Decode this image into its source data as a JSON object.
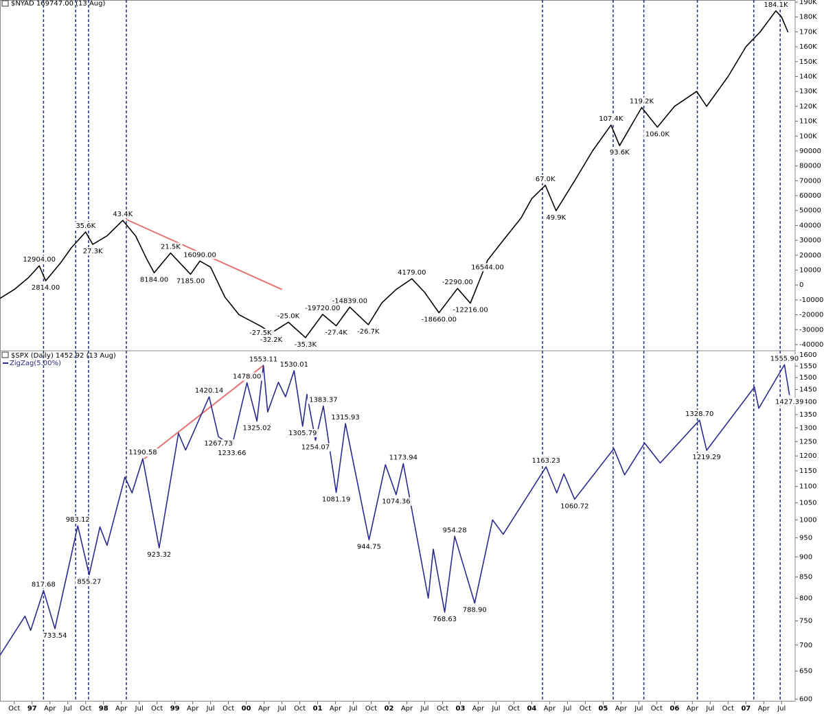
{
  "chart_data": [
    {
      "type": "line",
      "title": "$NYAD 169747.00 (13 Aug)",
      "xlim": [
        1996.55,
        2007.69
      ],
      "ylim": [
        -43700,
        191400
      ],
      "log": false,
      "yticks": [
        {
          "value": 190000,
          "label": "190K"
        },
        {
          "value": 180000,
          "label": "180K"
        },
        {
          "value": 170000,
          "label": "170K"
        },
        {
          "value": 160000,
          "label": "160K"
        },
        {
          "value": 150000,
          "label": "150K"
        },
        {
          "value": 140000,
          "label": "140K"
        },
        {
          "value": 130000,
          "label": "130K"
        },
        {
          "value": 120000,
          "label": "120K"
        },
        {
          "value": 110000,
          "label": "110K"
        },
        {
          "value": 100000,
          "label": "100K"
        },
        90000,
        80000,
        70000,
        60000,
        50000,
        40000,
        30000,
        20000,
        10000,
        0,
        -10000,
        -20000,
        -30000,
        -40000
      ],
      "series": [
        {
          "color": "#000000",
          "x": [
            1996.55,
            1996.75,
            1996.95,
            1997.1,
            1997.19,
            1997.4,
            1997.55,
            1997.75,
            1997.85,
            1998.05,
            1998.27,
            1998.45,
            1998.6,
            1998.71,
            1998.94,
            1999.22,
            1999.35,
            1999.5,
            1999.7,
            1999.9,
            2000.2,
            2000.35,
            2000.59,
            2000.83,
            2001.07,
            2001.26,
            2001.45,
            2001.71,
            2001.9,
            2002.1,
            2002.32,
            2002.5,
            2002.7,
            2002.96,
            2003.14,
            2003.38,
            2003.6,
            2003.85,
            2004.0,
            2004.19,
            2004.34,
            2004.6,
            2004.85,
            2005.11,
            2005.23,
            2005.54,
            2005.76,
            2006.0,
            2006.31,
            2006.45,
            2006.75,
            2007.0,
            2007.2,
            2007.42,
            2007.5,
            2007.59
          ],
          "values": [
            -9000,
            -3000,
            5000,
            12904,
            2814,
            15000,
            25000,
            35600,
            27300,
            33000,
            43400,
            33000,
            18000,
            8184,
            21500,
            7185,
            16090,
            12000,
            -8000,
            -20000,
            -27500,
            -32200,
            -25000,
            -35300,
            -19720,
            -27400,
            -14839,
            -26700,
            -12000,
            -3000,
            4179,
            -5000,
            -18660,
            -2290,
            -12216,
            16544,
            30000,
            45000,
            58000,
            67000,
            49900,
            70000,
            90000,
            107400,
            93600,
            119200,
            106000,
            120000,
            130000,
            120000,
            140000,
            160000,
            170000,
            184100,
            180000,
            169747
          ],
          "value_labels": [
            null,
            null,
            null,
            "12904.00",
            "2814.00",
            null,
            null,
            "35.6K",
            "27.3K",
            null,
            "43.4K",
            null,
            null,
            "8184.00",
            "21.5K",
            "7185.00",
            "16090.00",
            null,
            null,
            null,
            "-27.5K",
            "-32.2K",
            "-25.0K",
            "-35.3K",
            "-19720.00",
            "-27.4K",
            "-14839.00",
            "-26.7K",
            null,
            null,
            "4179.00",
            null,
            "-18660.00",
            "-2290.00",
            "-12216.00",
            "16544.00",
            null,
            null,
            null,
            "67.0K",
            "49.9K",
            null,
            null,
            "107.4K",
            "93.6K",
            "119.2K",
            "106.0K",
            null,
            null,
            null,
            null,
            null,
            null,
            "184.1K",
            null,
            null
          ]
        }
      ],
      "trendlines": [
        {
          "color": "#e57373",
          "x": [
            1998.32,
            2000.5
          ],
          "values": [
            44000,
            -3000
          ]
        }
      ]
    },
    {
      "type": "line",
      "title": "$SPX (Daily) 1452.92 (13 Aug)",
      "xlim": [
        1996.55,
        2007.69
      ],
      "ylim": [
        596,
        1616
      ],
      "log": true,
      "yticks": [
        1600,
        1550,
        1500,
        1450,
        1400,
        1350,
        1300,
        1250,
        1200,
        1150,
        1100,
        1050,
        1000,
        950,
        900,
        850,
        800,
        750,
        700,
        650,
        600
      ],
      "xticks": [
        {
          "value": 1996.75,
          "label": "Oct"
        },
        {
          "value": 1997.0,
          "label": "97"
        },
        {
          "value": 1997.25,
          "label": "Apr"
        },
        {
          "value": 1997.5,
          "label": "Jul"
        },
        {
          "value": 1997.75,
          "label": "Oct"
        },
        {
          "value": 1998.0,
          "label": "98"
        },
        {
          "value": 1998.25,
          "label": "Apr"
        },
        {
          "value": 1998.5,
          "label": "Jul"
        },
        {
          "value": 1998.75,
          "label": "Oct"
        },
        {
          "value": 1999.0,
          "label": "99"
        },
        {
          "value": 1999.25,
          "label": "Apr"
        },
        {
          "value": 1999.5,
          "label": "Jul"
        },
        {
          "value": 1999.75,
          "label": "Oct"
        },
        {
          "value": 2000.0,
          "label": "00"
        },
        {
          "value": 2000.25,
          "label": "Apr"
        },
        {
          "value": 2000.5,
          "label": "Jul"
        },
        {
          "value": 2000.75,
          "label": "Oct"
        },
        {
          "value": 2001.0,
          "label": "01"
        },
        {
          "value": 2001.25,
          "label": "Apr"
        },
        {
          "value": 2001.5,
          "label": "Jul"
        },
        {
          "value": 2001.75,
          "label": "Oct"
        },
        {
          "value": 2002.0,
          "label": "02"
        },
        {
          "value": 2002.25,
          "label": "Apr"
        },
        {
          "value": 2002.5,
          "label": "Jul"
        },
        {
          "value": 2002.75,
          "label": "Oct"
        },
        {
          "value": 2003.0,
          "label": "03"
        },
        {
          "value": 2003.25,
          "label": "Apr"
        },
        {
          "value": 2003.5,
          "label": "Jul"
        },
        {
          "value": 2003.75,
          "label": "Oct"
        },
        {
          "value": 2004.0,
          "label": "04"
        },
        {
          "value": 2004.25,
          "label": "Apr"
        },
        {
          "value": 2004.5,
          "label": "Jul"
        },
        {
          "value": 2004.75,
          "label": "Oct"
        },
        {
          "value": 2005.0,
          "label": "05"
        },
        {
          "value": 2005.25,
          "label": "Apr"
        },
        {
          "value": 2005.5,
          "label": "Jul"
        },
        {
          "value": 2005.75,
          "label": "Oct"
        },
        {
          "value": 2006.0,
          "label": "06"
        },
        {
          "value": 2006.25,
          "label": "Apr"
        },
        {
          "value": 2006.5,
          "label": "Jul"
        },
        {
          "value": 2006.75,
          "label": "Oct"
        },
        {
          "value": 2007.0,
          "label": "07"
        },
        {
          "value": 2007.25,
          "label": "Apr"
        },
        {
          "value": 2007.5,
          "label": "Jul"
        }
      ],
      "vlines": {
        "color": "#1a2a80",
        "x": [
          1997.16,
          1997.61,
          1997.79,
          1998.32,
          2004.15,
          2005.14,
          2005.57,
          2006.32,
          2007.11,
          2007.48
        ]
      },
      "series": [
        {
          "name": "ZigZag(5.00%)",
          "color": "#2a2a8c",
          "x": [
            1996.55,
            1996.9,
            1996.98,
            1997.16,
            1997.32,
            1997.64,
            1997.8,
            1997.95,
            1998.05,
            1998.3,
            1998.4,
            1998.55,
            1998.78,
            1999.05,
            1999.15,
            1999.48,
            1999.61,
            1999.8,
            2000.01,
            2000.15,
            2000.24,
            2000.3,
            2000.45,
            2000.55,
            2000.67,
            2000.79,
            2000.85,
            2000.97,
            2001.08,
            2001.26,
            2001.39,
            2001.72,
            2001.95,
            2002.1,
            2002.2,
            2002.55,
            2002.62,
            2002.78,
            2002.92,
            2003.2,
            2003.45,
            2003.6,
            2004.2,
            2004.35,
            2004.45,
            2004.6,
            2005.15,
            2005.3,
            2005.58,
            2005.8,
            2006.35,
            2006.45,
            2007.12,
            2007.18,
            2007.54,
            2007.61
          ],
          "values": [
            680,
            760,
            730,
            817.68,
            733.54,
            983.12,
            855.27,
            980,
            930,
            1130,
            1080,
            1190.58,
            923.32,
            1280,
            1220,
            1420.14,
            1267.73,
            1233.66,
            1478.0,
            1325.02,
            1553.11,
            1360,
            1480,
            1420,
            1530.01,
            1305.79,
            1430,
            1254.07,
            1383.37,
            1081.19,
            1315.93,
            944.75,
            1170,
            1074.36,
            1173.94,
            800,
            920,
            768.63,
            954.28,
            788.9,
            1000,
            960,
            1163.23,
            1080,
            1140,
            1060.72,
            1225,
            1137,
            1245,
            1176,
            1328.7,
            1219.29,
            1460,
            1374,
            1555.9,
            1427.39
          ],
          "value_labels": [
            null,
            null,
            null,
            "817.68",
            "733.54",
            "983.12",
            "855.27",
            null,
            null,
            null,
            null,
            "1190.58",
            "923.32",
            null,
            null,
            "1420.14",
            "1267.73",
            "1233.66",
            "1478.00",
            "1325.02",
            "1553.11",
            null,
            null,
            null,
            "1530.01",
            "1305.79",
            null,
            "1254.07",
            "1383.37",
            "1081.19",
            "1315.93",
            "944.75",
            null,
            "1074.36",
            "1173.94",
            null,
            null,
            "768.63",
            "954.28",
            "788.90",
            null,
            null,
            "1163.23",
            null,
            null,
            "1060.72",
            null,
            null,
            null,
            null,
            "1328.70",
            "1219.29",
            null,
            null,
            "1555.90",
            "1427.39"
          ]
        }
      ],
      "trendlines": [
        {
          "color": "#e57373",
          "x": [
            1998.57,
            2000.24
          ],
          "values": [
            1190,
            1553
          ]
        }
      ]
    }
  ]
}
